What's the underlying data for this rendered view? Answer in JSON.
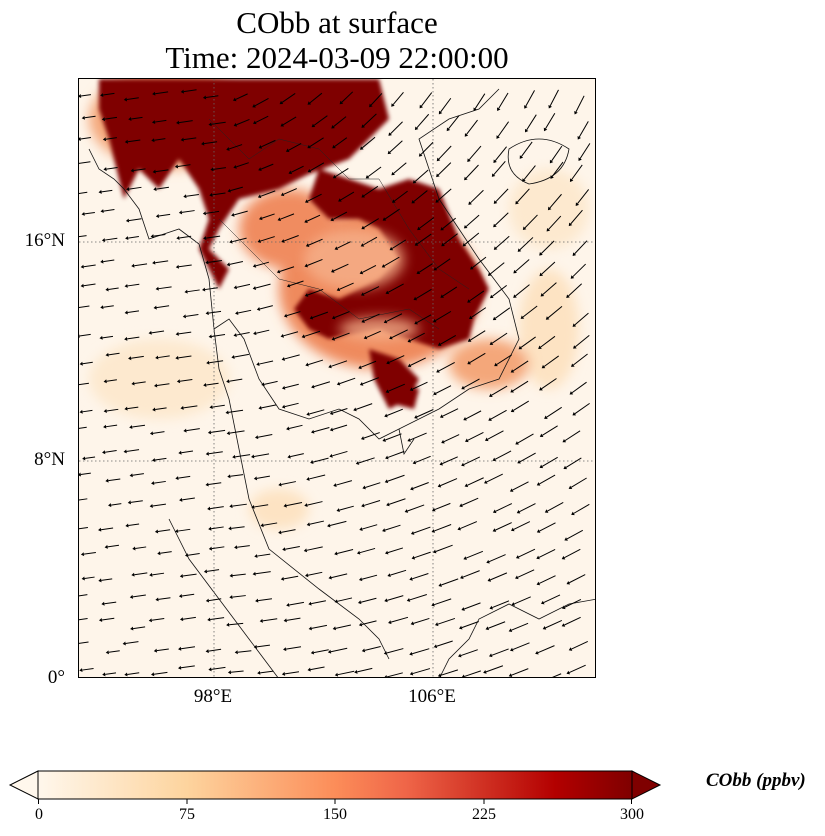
{
  "title": {
    "line1": "CObb at surface",
    "line2": "Time: 2024-03-09 22:00:00"
  },
  "map": {
    "lon_range": [
      93.0,
      112.0
    ],
    "lat_range": [
      0.0,
      22.0
    ],
    "lat_labels": [
      {
        "value": 16,
        "text": "16°N"
      },
      {
        "value": 8,
        "text": "8°N"
      },
      {
        "value": 0,
        "text": "0°"
      }
    ],
    "lon_labels": [
      {
        "value": 98,
        "text": "98°E"
      },
      {
        "value": 106,
        "text": "106°E"
      }
    ],
    "gridlines": "dotted",
    "overlay": "wind vectors"
  },
  "colorbar": {
    "label": "CObb (ppbv)",
    "range": [
      0,
      300
    ],
    "extend": "both",
    "colormap": "OrRd",
    "ticks": [
      "0",
      "75",
      "150",
      "225",
      "300"
    ],
    "colors": [
      "#fff7ec",
      "#fdd49e",
      "#fc8d59",
      "#d7301f",
      "#7f0000"
    ]
  }
}
